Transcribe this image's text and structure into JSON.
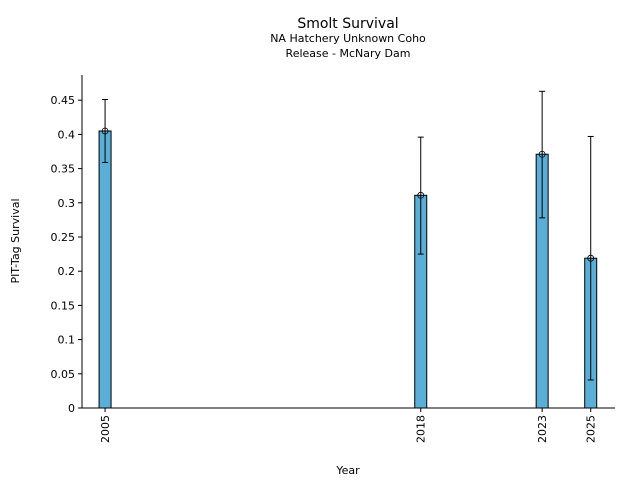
{
  "chart_data": {
    "type": "bar",
    "title": "Smolt Survival",
    "subtitle_lines": [
      "NA Hatchery Unknown Coho",
      "Release - McNary Dam"
    ],
    "xlabel": "Year",
    "ylabel": "PIT-Tag Survival",
    "categories": [
      "2005",
      "2018",
      "2023",
      "2025"
    ],
    "x": [
      2005,
      2018,
      2023,
      2025
    ],
    "values": [
      0.405,
      0.311,
      0.371,
      0.219
    ],
    "error_low": [
      0.359,
      0.225,
      0.278,
      0.041
    ],
    "error_high": [
      0.451,
      0.396,
      0.463,
      0.397
    ],
    "xlim": [
      2004.05,
      2026
    ],
    "ylim": [
      0,
      0.49
    ],
    "yticks": [
      0,
      0.05,
      0.1,
      0.15,
      0.2,
      0.25,
      0.3,
      0.35,
      0.4,
      0.45
    ],
    "ytick_labels": [
      "0",
      "0.05",
      "0.1",
      "0.15",
      "0.2",
      "0.25",
      "0.3",
      "0.35",
      "0.4",
      "0.45"
    ],
    "grid": false,
    "bar_color": "#5bafd6"
  }
}
